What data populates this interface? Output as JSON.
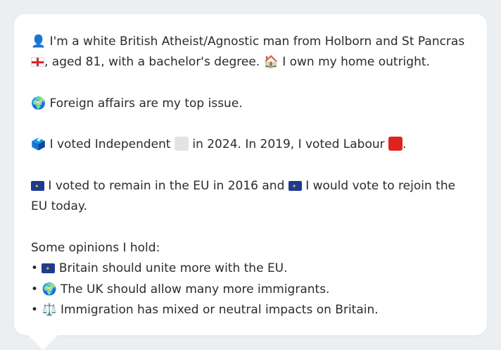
{
  "profile": {
    "icon_person": "👤",
    "intro_text": "I'm a white British Atheist/Agnostic man from Holborn and St Pancras",
    "icon_england_flag": "england-flag",
    "age_line": ", aged 81, with a bachelor's degree.",
    "icon_house": "🏠",
    "home_text": "I own my home outright."
  },
  "issue": {
    "icon_globe": "🌍",
    "text": "Foreign affairs are my top issue."
  },
  "votes": {
    "icon_ballot": "🗳️",
    "text_before": "I voted Independent",
    "independent_color": "#e3e3e3",
    "text_middle": "in 2024. In 2019, I voted Labour",
    "labour_color": "#e0231f",
    "text_after": "."
  },
  "eu": {
    "text_1": "I voted to remain in the EU in 2016 and",
    "text_2": "I would vote to rejoin the EU today."
  },
  "opinions": {
    "heading": "Some opinions I hold:",
    "items": [
      {
        "icon": "eu-flag",
        "text": "Britain should unite more with the EU."
      },
      {
        "icon": "🌍",
        "text": "The UK should allow many more immigrants."
      },
      {
        "icon": "⚖️",
        "text": "Immigration has mixed or neutral impacts on Britain."
      }
    ]
  }
}
